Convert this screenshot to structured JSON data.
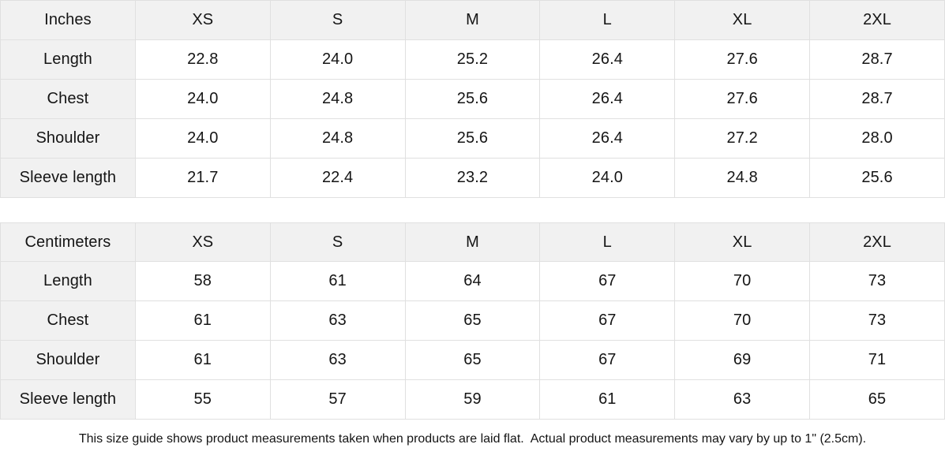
{
  "colors": {
    "header_bg": "#f1f1f1",
    "border": "#e0e0e0",
    "text": "#151515",
    "background": "#ffffff"
  },
  "footer": {
    "note": "This size guide shows product measurements taken when products are laid flat.  Actual product measurements may vary by up to 1\" (2.5cm)."
  },
  "chart_data": [
    {
      "type": "table",
      "title": "Inches",
      "unit_label": "Inches",
      "columns": [
        "Inches",
        "XS",
        "S",
        "M",
        "L",
        "XL",
        "2XL"
      ],
      "rows": [
        {
          "label": "Length",
          "values": [
            "22.8",
            "24.0",
            "25.2",
            "26.4",
            "27.6",
            "28.7"
          ]
        },
        {
          "label": "Chest",
          "values": [
            "24.0",
            "24.8",
            "25.6",
            "26.4",
            "27.6",
            "28.7"
          ]
        },
        {
          "label": "Shoulder",
          "values": [
            "24.0",
            "24.8",
            "25.6",
            "26.4",
            "27.2",
            "28.0"
          ]
        },
        {
          "label": "Sleeve length",
          "values": [
            "21.7",
            "22.4",
            "23.2",
            "24.0",
            "24.8",
            "25.6"
          ]
        }
      ]
    },
    {
      "type": "table",
      "title": "Centimeters",
      "unit_label": "Centimeters",
      "columns": [
        "Centimeters",
        "XS",
        "S",
        "M",
        "L",
        "XL",
        "2XL"
      ],
      "rows": [
        {
          "label": "Length",
          "values": [
            "58",
            "61",
            "64",
            "67",
            "70",
            "73"
          ]
        },
        {
          "label": "Chest",
          "values": [
            "61",
            "63",
            "65",
            "67",
            "70",
            "73"
          ]
        },
        {
          "label": "Shoulder",
          "values": [
            "61",
            "63",
            "65",
            "67",
            "69",
            "71"
          ]
        },
        {
          "label": "Sleeve length",
          "values": [
            "55",
            "57",
            "59",
            "61",
            "63",
            "65"
          ]
        }
      ]
    }
  ]
}
